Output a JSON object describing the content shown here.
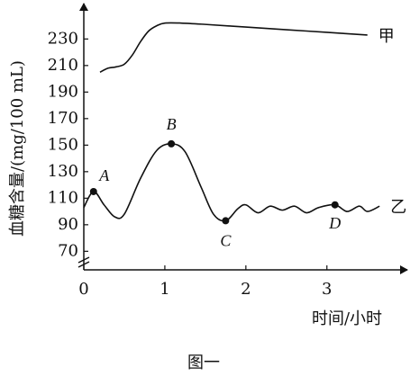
{
  "chart_data": {
    "type": "line",
    "y_label": "血糖含量/(mg/100 mL)",
    "x_label": "时间/小时",
    "caption": "图一",
    "xlim": [
      0,
      3.97
    ],
    "xticks": [
      0,
      1,
      2,
      3
    ],
    "ylim": [
      56,
      256
    ],
    "yticks": [
      70,
      90,
      110,
      130,
      150,
      170,
      190,
      210,
      230
    ],
    "series": [
      {
        "name": "甲",
        "color": "#111111",
        "x": [
          0.2,
          0.3,
          0.4,
          0.5,
          0.6,
          0.7,
          0.8,
          0.9,
          1.0,
          1.2,
          1.5,
          2.0,
          2.5,
          3.0,
          3.5
        ],
        "values": [
          205,
          208,
          209,
          211,
          218,
          228,
          236,
          240,
          242,
          242,
          241,
          239,
          237,
          235,
          233
        ]
      },
      {
        "name": "乙",
        "color": "#111111",
        "x": [
          0,
          0.12,
          0.25,
          0.38,
          0.5,
          0.7,
          0.9,
          1.08,
          1.25,
          1.45,
          1.6,
          1.75,
          1.9,
          2.0,
          2.15,
          2.3,
          2.45,
          2.6,
          2.75,
          2.9,
          3.1,
          3.25,
          3.4,
          3.5,
          3.65
        ],
        "values": [
          103,
          115,
          105,
          96,
          98,
          125,
          146,
          151,
          145,
          118,
          98,
          93,
          102,
          105,
          99,
          104,
          101,
          104,
          99,
          103,
          105,
          100,
          104,
          100,
          104
        ]
      }
    ],
    "points": [
      {
        "label": "A",
        "x": 0.12,
        "y": 115
      },
      {
        "label": "B",
        "x": 1.08,
        "y": 151
      },
      {
        "label": "C",
        "x": 1.75,
        "y": 93
      },
      {
        "label": "D",
        "x": 3.1,
        "y": 105
      }
    ]
  }
}
